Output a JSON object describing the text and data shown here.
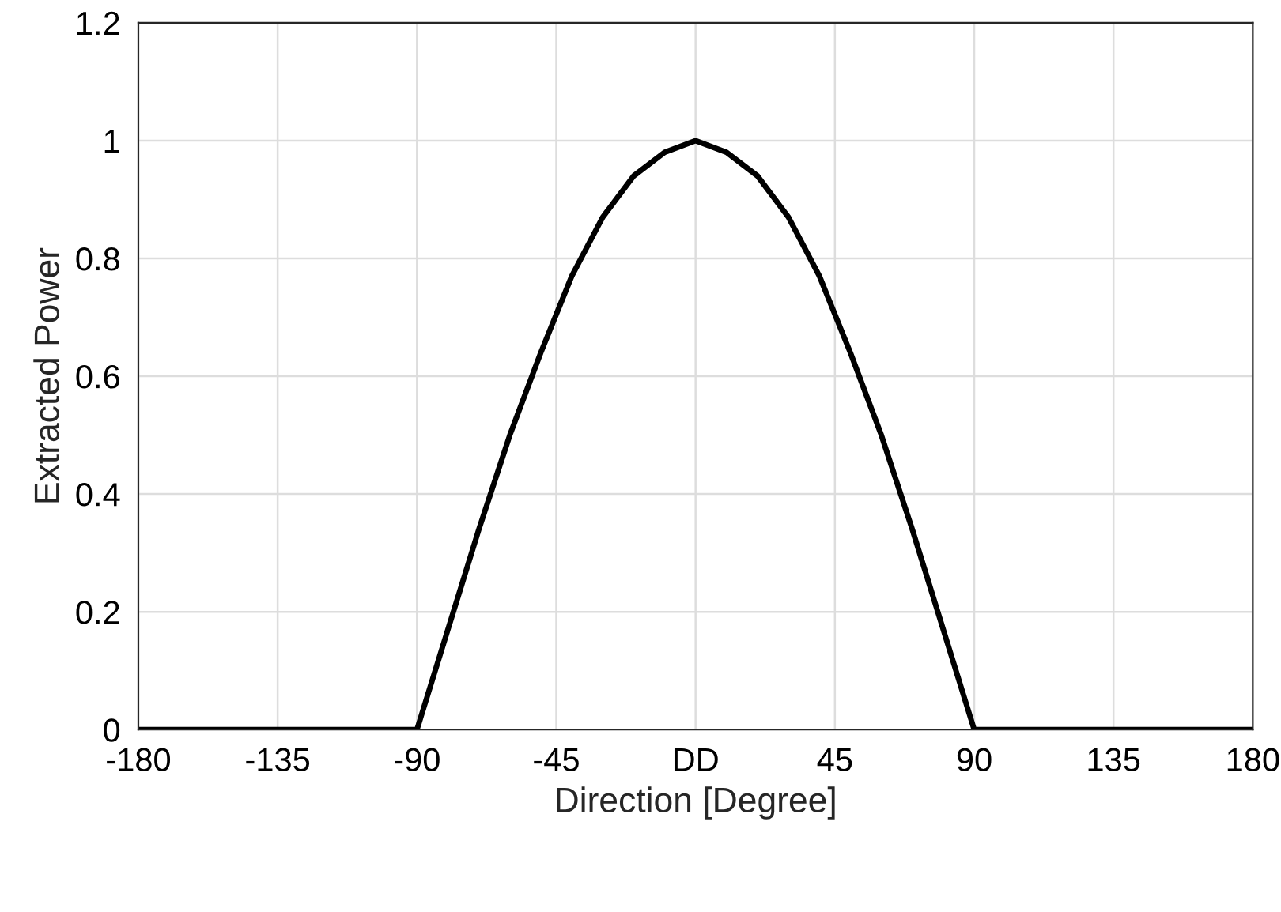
{
  "chart_data": {
    "type": "line",
    "xlabel": "Direction [Degree]",
    "ylabel": "Extracted Power",
    "x": [
      -180,
      -90,
      -80,
      -70,
      -60,
      -50,
      -40,
      -30,
      -20,
      -10,
      0,
      10,
      20,
      30,
      40,
      50,
      60,
      70,
      80,
      90,
      180
    ],
    "series": [
      {
        "color": "#000000",
        "values": [
          0,
          0,
          0.17,
          0.34,
          0.5,
          0.64,
          0.77,
          0.87,
          0.94,
          0.98,
          1,
          0.98,
          0.94,
          0.87,
          0.77,
          0.64,
          0.5,
          0.34,
          0.17,
          0,
          0
        ]
      }
    ],
    "xlim": [
      -180,
      180
    ],
    "xticks": [
      -180,
      -135,
      -90,
      -45,
      {
        "value": 0,
        "label": "DD"
      },
      45,
      90,
      135,
      180
    ],
    "ylim": [
      0,
      1.2
    ],
    "yticks": [
      0,
      0.2,
      0.4,
      0.6,
      0.8,
      1,
      1.2
    ],
    "grid": true,
    "marker": "none",
    "line_style": "solid"
  }
}
